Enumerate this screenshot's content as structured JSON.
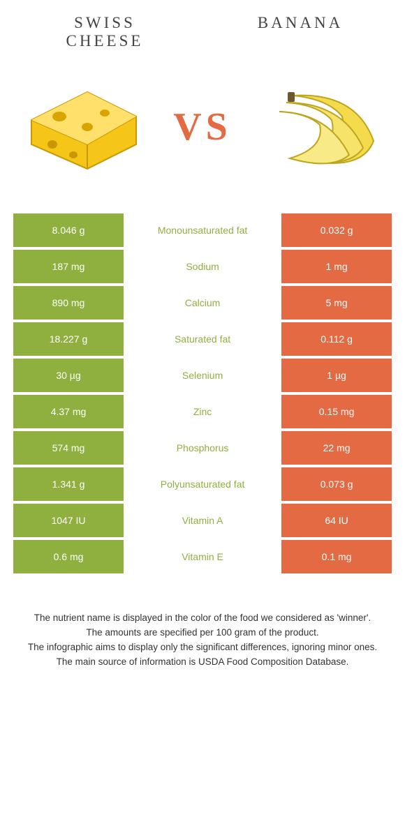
{
  "colors": {
    "left": "#8fb03e",
    "right": "#e46a44",
    "vs": "#e46a44",
    "title": "#444444",
    "nutrient_left": "#8fb03e",
    "nutrient_right": "#e46a44"
  },
  "foods": {
    "left": {
      "name": "Swiss Cheese"
    },
    "right": {
      "name": "Banana"
    }
  },
  "vs_label": "VS",
  "rows": [
    {
      "left": "8.046 g",
      "nutrient": "Monounsaturated fat",
      "right": "0.032 g",
      "winner": "left"
    },
    {
      "left": "187 mg",
      "nutrient": "Sodium",
      "right": "1 mg",
      "winner": "left"
    },
    {
      "left": "890 mg",
      "nutrient": "Calcium",
      "right": "5 mg",
      "winner": "left"
    },
    {
      "left": "18.227 g",
      "nutrient": "Saturated fat",
      "right": "0.112 g",
      "winner": "left"
    },
    {
      "left": "30 µg",
      "nutrient": "Selenium",
      "right": "1 µg",
      "winner": "left"
    },
    {
      "left": "4.37 mg",
      "nutrient": "Zinc",
      "right": "0.15 mg",
      "winner": "left"
    },
    {
      "left": "574 mg",
      "nutrient": "Phosphorus",
      "right": "22 mg",
      "winner": "left"
    },
    {
      "left": "1.341 g",
      "nutrient": "Polyunsaturated fat",
      "right": "0.073 g",
      "winner": "left"
    },
    {
      "left": "1047 IU",
      "nutrient": "Vitamin A",
      "right": "64 IU",
      "winner": "left"
    },
    {
      "left": "0.6 mg",
      "nutrient": "Vitamin E",
      "right": "0.1 mg",
      "winner": "left"
    }
  ],
  "footer": {
    "line1": "The nutrient name is displayed in the color of the food we considered as 'winner'.",
    "line2": "The amounts are specified per 100 gram of the product.",
    "line3": "The infographic aims to display only the significant differences, ignoring minor ones.",
    "line4": "The main source of information is USDA Food Composition Database."
  }
}
